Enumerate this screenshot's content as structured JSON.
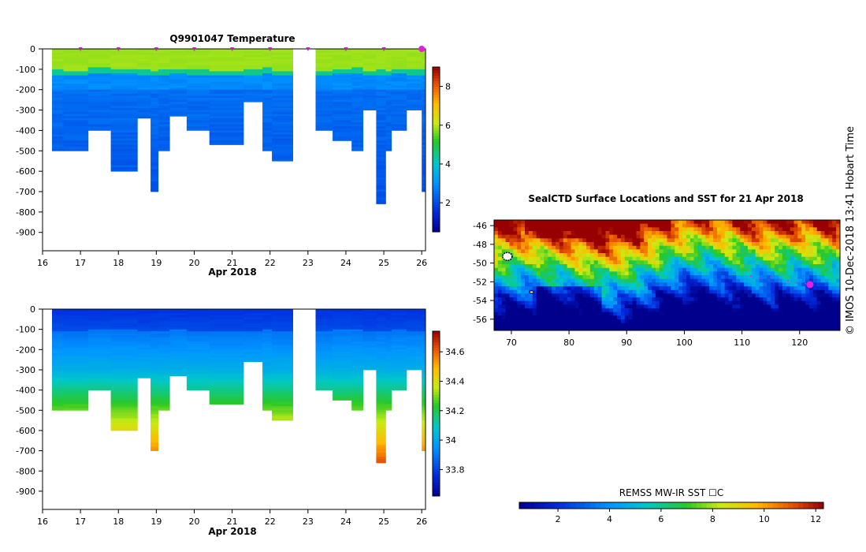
{
  "temperature_plot": {
    "title": "Q9901047  Temperature",
    "xlabel": "Apr 2018",
    "colorbar_ticks": [
      "2",
      "4",
      "6",
      "8"
    ],
    "colorbar_range": [
      0.5,
      9
    ]
  },
  "salinity_plot": {
    "xlabel": "Apr 2018",
    "colorbar_ticks": [
      "33.8",
      "34",
      "34.2",
      "34.4",
      "34.6"
    ],
    "colorbar_range": [
      33.62,
      34.74
    ]
  },
  "map_plot": {
    "title": "SealCTD Surface Locations and SST for 21 Apr 2018",
    "x_ticks": [
      "70",
      "80",
      "90",
      "100",
      "110",
      "120"
    ],
    "y_ticks": [
      "-46",
      "-48",
      "-50",
      "-52",
      "-54",
      "-56"
    ],
    "colorbar_label": "REMSS MW-IR SST ☐C",
    "colorbar_ticks": [
      "2",
      "4",
      "6",
      "8",
      "10",
      "12"
    ],
    "colorbar_range": [
      0.5,
      12.3
    ],
    "current_position": [
      121.8,
      -52.3
    ]
  },
  "credit": "©  IMOS 10-Dec-2018 13:41 Hobart Time",
  "chart_data": [
    {
      "type": "heatmap",
      "name": "temperature-section",
      "title": "Q9901047  Temperature",
      "xlabel": "Apr 2018",
      "ylabel": "",
      "x_ticks": [
        "16",
        "17",
        "18",
        "19",
        "20",
        "21",
        "22",
        "23",
        "24",
        "25",
        "26"
      ],
      "y_ticks": [
        "0",
        "-100",
        "-200",
        "-300",
        "-400",
        "-500",
        "-600",
        "-700",
        "-800",
        "-900"
      ],
      "xlim": [
        16,
        26.1
      ],
      "ylim": [
        -990,
        0
      ],
      "colorbar_ticks": [
        2,
        4,
        6,
        8
      ],
      "profiles": [
        {
          "start": 16.25,
          "end": 16.55,
          "depth": 500,
          "thermocline": 120
        },
        {
          "start": 16.55,
          "end": 17.2,
          "depth": 500,
          "thermocline": 125
        },
        {
          "start": 17.2,
          "end": 17.8,
          "depth": 400,
          "thermocline": 110
        },
        {
          "start": 17.8,
          "end": 18.5,
          "depth": 600,
          "thermocline": 115
        },
        {
          "start": 18.5,
          "end": 18.85,
          "depth": 340,
          "thermocline": 118
        },
        {
          "start": 18.85,
          "end": 19.05,
          "depth": 700,
          "thermocline": 125
        },
        {
          "start": 19.05,
          "end": 19.35,
          "depth": 500,
          "thermocline": 118
        },
        {
          "start": 19.35,
          "end": 19.8,
          "depth": 330,
          "thermocline": 112
        },
        {
          "start": 19.8,
          "end": 20.4,
          "depth": 400,
          "thermocline": 118
        },
        {
          "start": 20.4,
          "end": 21.3,
          "depth": 470,
          "thermocline": 122
        },
        {
          "start": 21.3,
          "end": 21.8,
          "depth": 260,
          "thermocline": 120
        },
        {
          "start": 21.8,
          "end": 22.05,
          "depth": 500,
          "thermocline": 108
        },
        {
          "start": 22.05,
          "end": 22.6,
          "depth": 550,
          "thermocline": 125
        },
        {
          "start": 23.2,
          "end": 23.65,
          "depth": 400,
          "thermocline": 122
        },
        {
          "start": 23.65,
          "end": 24.15,
          "depth": 450,
          "thermocline": 112
        },
        {
          "start": 24.15,
          "end": 24.45,
          "depth": 500,
          "thermocline": 110
        },
        {
          "start": 24.45,
          "end": 24.8,
          "depth": 300,
          "thermocline": 125
        },
        {
          "start": 24.8,
          "end": 25.05,
          "depth": 760,
          "thermocline": 118
        },
        {
          "start": 25.05,
          "end": 25.2,
          "depth": 500,
          "thermocline": 125
        },
        {
          "start": 25.2,
          "end": 25.6,
          "depth": 400,
          "thermocline": 112
        },
        {
          "start": 25.6,
          "end": 26.0,
          "depth": 300,
          "thermocline": 118
        },
        {
          "start": 26.0,
          "end": 26.1,
          "depth": 700,
          "thermocline": 120
        }
      ],
      "profile_markers": [
        17,
        18,
        19,
        20,
        21,
        22,
        23,
        24,
        25,
        26
      ]
    },
    {
      "type": "heatmap",
      "name": "salinity-section",
      "title": "",
      "xlabel": "Apr 2018",
      "ylabel": "",
      "x_ticks": [
        "16",
        "17",
        "18",
        "19",
        "20",
        "21",
        "22",
        "23",
        "24",
        "25",
        "26"
      ],
      "y_ticks": [
        "0",
        "-100",
        "-200",
        "-300",
        "-400",
        "-500",
        "-600",
        "-700",
        "-800",
        "-900"
      ],
      "xlim": [
        16,
        26.1
      ],
      "ylim": [
        -990,
        0
      ],
      "colorbar_ticks": [
        33.8,
        34,
        34.2,
        34.4,
        34.6
      ],
      "profiles": "same casts as temperature section"
    },
    {
      "type": "heatmap",
      "name": "sst-map",
      "title": "SealCTD Surface Locations and SST for 21 Apr 2018",
      "xlabel": "",
      "ylabel": "",
      "x_ticks": [
        70,
        80,
        90,
        100,
        110,
        120
      ],
      "y_ticks": [
        -46,
        -48,
        -50,
        -52,
        -54,
        -56
      ],
      "xlim": [
        67,
        127
      ],
      "ylim": [
        -57.2,
        -45.4
      ],
      "colorbar_label": "REMSS MW-IR SST ☐C",
      "colorbar_ticks": [
        2,
        4,
        6,
        8,
        10,
        12
      ],
      "track": [
        [
          111.5,
          -51.4
        ],
        [
          113,
          -51.6
        ],
        [
          115,
          -51.5
        ],
        [
          116.5,
          -51.7
        ],
        [
          118,
          -51.9
        ],
        [
          119.5,
          -52.1
        ],
        [
          121,
          -52.2
        ],
        [
          121.8,
          -52.3
        ]
      ]
    }
  ]
}
